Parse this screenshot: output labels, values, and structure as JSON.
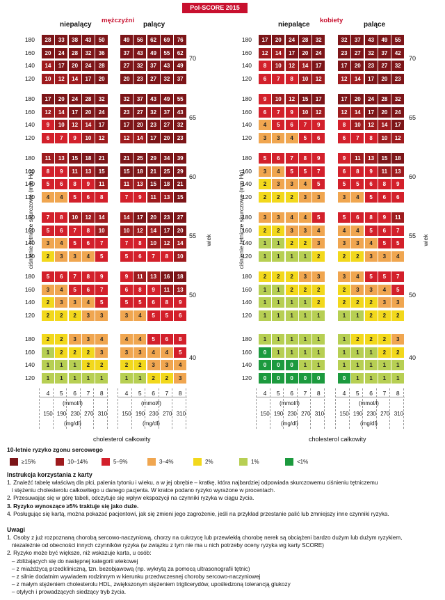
{
  "title": "Pol-SCORE 2015",
  "colors": {
    "c15": "#7c1518",
    "c10": "#9e1b1e",
    "c5": "#d3202b",
    "c3": "#f0a650",
    "c2": "#f2d81c",
    "c1": "#b7cf53",
    "c0": "#1c9a3e"
  },
  "men": {
    "label": "mężczyźni",
    "nonsmoker": "niepalący",
    "smoker": "palący"
  },
  "women": {
    "label": "kobiety",
    "nonsmoker": "niepalące",
    "smoker": "palące"
  },
  "axis": {
    "ylabel": "ciśnienie tętnicze skurczowe (mm Hg)",
    "age_label": "wiek",
    "xlabel": "cholesterol całkowity",
    "unit_mmol": "(mmol/l)",
    "unit_mg": "(mg/dl)"
  },
  "chart_data": {
    "type": "heatmap",
    "title": "Pol-SCORE 2015",
    "ages": [
      "70",
      "65",
      "60",
      "55",
      "50",
      "40"
    ],
    "bp": [
      "180",
      "160",
      "140",
      "120"
    ],
    "chol_mmol": [
      "4",
      "5",
      "6",
      "7",
      "8"
    ],
    "chol_mgdl": [
      "150",
      "190",
      "230",
      "270",
      "310"
    ],
    "men_nonsmoker": [
      [
        [
          28,
          33,
          38,
          43,
          50
        ],
        [
          20,
          24,
          28,
          32,
          36
        ],
        [
          14,
          17,
          20,
          24,
          28
        ],
        [
          10,
          12,
          14,
          17,
          20
        ]
      ],
      [
        [
          17,
          20,
          24,
          28,
          32
        ],
        [
          12,
          14,
          17,
          20,
          24
        ],
        [
          9,
          10,
          12,
          14,
          17
        ],
        [
          6,
          7,
          9,
          10,
          12
        ]
      ],
      [
        [
          11,
          13,
          15,
          18,
          21
        ],
        [
          8,
          9,
          11,
          13,
          15
        ],
        [
          5,
          6,
          8,
          9,
          11
        ],
        [
          4,
          4,
          5,
          6,
          8
        ]
      ],
      [
        [
          7,
          8,
          10,
          12,
          14
        ],
        [
          5,
          6,
          7,
          8,
          10
        ],
        [
          3,
          4,
          5,
          6,
          7
        ],
        [
          2,
          3,
          3,
          4,
          5
        ]
      ],
      [
        [
          5,
          6,
          7,
          8,
          9
        ],
        [
          3,
          4,
          5,
          6,
          7
        ],
        [
          2,
          3,
          3,
          4,
          5
        ],
        [
          2,
          2,
          2,
          3,
          3
        ]
      ],
      [
        [
          2,
          2,
          3,
          3,
          4
        ],
        [
          1,
          2,
          2,
          2,
          3
        ],
        [
          1,
          1,
          1,
          2,
          2
        ],
        [
          1,
          1,
          1,
          1,
          1
        ]
      ]
    ],
    "men_smoker": [
      [
        [
          49,
          56,
          62,
          69,
          76
        ],
        [
          37,
          43,
          49,
          55,
          62
        ],
        [
          27,
          32,
          37,
          43,
          49
        ],
        [
          20,
          23,
          27,
          32,
          37
        ]
      ],
      [
        [
          32,
          37,
          43,
          49,
          55
        ],
        [
          23,
          27,
          32,
          37,
          43
        ],
        [
          17,
          20,
          23,
          27,
          32
        ],
        [
          12,
          14,
          17,
          20,
          23
        ]
      ],
      [
        [
          21,
          25,
          29,
          34,
          39
        ],
        [
          15,
          18,
          21,
          25,
          29
        ],
        [
          11,
          13,
          15,
          18,
          21
        ],
        [
          7,
          9,
          11,
          13,
          15
        ]
      ],
      [
        [
          14,
          17,
          20,
          23,
          27
        ],
        [
          10,
          12,
          14,
          17,
          20
        ],
        [
          7,
          8,
          10,
          12,
          14
        ],
        [
          5,
          6,
          7,
          8,
          10
        ]
      ],
      [
        [
          9,
          11,
          13,
          16,
          18
        ],
        [
          6,
          8,
          9,
          11,
          13
        ],
        [
          5,
          5,
          6,
          8,
          9
        ],
        [
          3,
          4,
          5,
          5,
          6
        ]
      ],
      [
        [
          4,
          4,
          5,
          6,
          8
        ],
        [
          3,
          3,
          4,
          4,
          5
        ],
        [
          2,
          2,
          3,
          3,
          4
        ],
        [
          1,
          1,
          2,
          2,
          3
        ]
      ]
    ],
    "women_nonsmoker": [
      [
        [
          17,
          20,
          24,
          28,
          32
        ],
        [
          12,
          14,
          17,
          20,
          24
        ],
        [
          8,
          10,
          12,
          14,
          17
        ],
        [
          6,
          7,
          8,
          10,
          12
        ]
      ],
      [
        [
          9,
          10,
          12,
          15,
          17
        ],
        [
          6,
          7,
          9,
          10,
          12
        ],
        [
          4,
          5,
          6,
          7,
          9
        ],
        [
          3,
          3,
          4,
          5,
          6
        ]
      ],
      [
        [
          5,
          6,
          7,
          8,
          9
        ],
        [
          3,
          4,
          5,
          5,
          7
        ],
        [
          2,
          3,
          3,
          4,
          5
        ],
        [
          2,
          2,
          2,
          3,
          3
        ]
      ],
      [
        [
          3,
          3,
          4,
          4,
          5
        ],
        [
          2,
          2,
          3,
          3,
          4
        ],
        [
          1,
          1,
          2,
          2,
          3
        ],
        [
          1,
          1,
          1,
          1,
          2
        ]
      ],
      [
        [
          2,
          2,
          2,
          3,
          3
        ],
        [
          1,
          1,
          2,
          2,
          2
        ],
        [
          1,
          1,
          1,
          1,
          2
        ],
        [
          1,
          1,
          1,
          1,
          1
        ]
      ],
      [
        [
          1,
          1,
          1,
          1,
          1
        ],
        [
          0,
          1,
          1,
          1,
          1
        ],
        [
          0,
          0,
          0,
          1,
          1
        ],
        [
          0,
          0,
          0,
          0,
          0
        ]
      ]
    ],
    "women_smoker": [
      [
        [
          32,
          37,
          43,
          49,
          55
        ],
        [
          23,
          27,
          32,
          37,
          42
        ],
        [
          17,
          20,
          23,
          27,
          32
        ],
        [
          12,
          14,
          17,
          20,
          23
        ]
      ],
      [
        [
          17,
          20,
          24,
          28,
          32
        ],
        [
          12,
          14,
          17,
          20,
          24
        ],
        [
          8,
          10,
          12,
          14,
          17
        ],
        [
          6,
          7,
          8,
          10,
          12
        ]
      ],
      [
        [
          9,
          11,
          13,
          15,
          18
        ],
        [
          6,
          8,
          9,
          11,
          13
        ],
        [
          5,
          5,
          6,
          8,
          9
        ],
        [
          3,
          4,
          5,
          6,
          6
        ]
      ],
      [
        [
          5,
          6,
          8,
          9,
          11
        ],
        [
          4,
          4,
          5,
          6,
          7
        ],
        [
          3,
          3,
          4,
          5,
          5
        ],
        [
          2,
          2,
          3,
          3,
          4
        ]
      ],
      [
        [
          3,
          4,
          5,
          5,
          7
        ],
        [
          2,
          3,
          3,
          4,
          5
        ],
        [
          2,
          2,
          2,
          3,
          3
        ],
        [
          1,
          1,
          2,
          2,
          2
        ]
      ],
      [
        [
          1,
          2,
          2,
          2,
          3
        ],
        [
          1,
          1,
          1,
          2,
          2
        ],
        [
          1,
          1,
          1,
          1,
          1
        ],
        [
          0,
          1,
          1,
          1,
          1
        ]
      ]
    ]
  },
  "legend": {
    "title": "10-letnie ryzyko zgonu sercowego",
    "items": [
      {
        "label": "≥15%",
        "color": "#7c1518"
      },
      {
        "label": "10–14%",
        "color": "#9e1b1e"
      },
      {
        "label": "5–9%",
        "color": "#d3202b"
      },
      {
        "label": "3–4%",
        "color": "#f0a650"
      },
      {
        "label": "2%",
        "color": "#f2d81c"
      },
      {
        "label": "1%",
        "color": "#b7cf53"
      },
      {
        "label": "<1%",
        "color": "#1c9a3e"
      }
    ]
  },
  "instructions": {
    "title": "Instrukcja korzystania z karty",
    "lines": [
      "1. Znaleźć tabelę właściwą dla płci, palenia tytoniu i wieku, a w jej obrębie – kratkę, która najbardziej odpowiada skurczowemu ciśnieniu tętniczemu",
      "   i stężeniu cholesterolu całkowitego u danego pacjenta. W kratce podano ryzyko wyrażone w procentach.",
      "2. Przesuwając się w górę tabeli, odczytuje się wpływ ekspozycji na czynniki ryzyka w ciągu życia.",
      "3. Ryzyko wynoszące ≥5% traktuje się jako duże.",
      "4. Posługując się kartą, można pokazać pacjentowi, jak się zmieni jego zagrożenie, jeśli na przykład przestanie palić lub zmniejszy inne czynniki ryzyka."
    ]
  },
  "notes": {
    "title": "Uwagi",
    "lines": [
      "1. Osoby z już rozpoznaną chorobą sercowo-naczyniową, chorzy na cukrzycę lub przewlekłą chorobę nerek są obciążeni bardzo dużym lub dużym ryzykiem,",
      "   niezależnie od obecności innych czynników ryzyka (w związku z tym nie ma u nich potrzeby oceny ryzyka wg karty SCORE)",
      "2. Ryzyko może być większe, niż wskazuje karta, u osób:",
      "   – zbliżających się do następnej kategorii wiekowej",
      "   – z miażdżycą przedkliniczną, tzn. bezobjawową (np. wykrytą za pomocą ultrasonografii tętnic)",
      "   – z silnie dodatnim wywiadem rodzinnym w kierunku przedwczesnej choroby sercowo-naczyniowej",
      "   – z małym stężeniem cholesterolu HDL, zwiększonym stężeniem triglicerydów, upośledzoną tolerancją glukozy",
      "   – otyłych i prowadzących siedzący tryb życia."
    ]
  }
}
